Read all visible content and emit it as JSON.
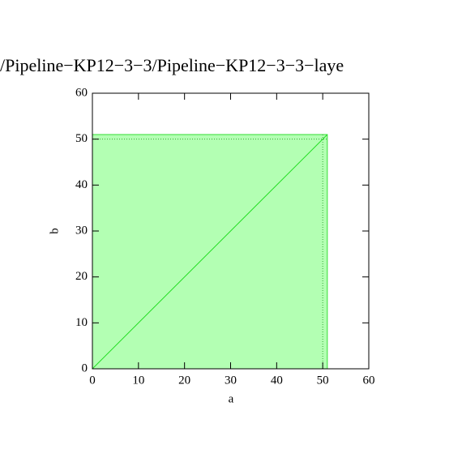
{
  "chart_data": {
    "type": "area",
    "title": "/Pipeline−KP12−3−3/Pipeline−KP12−3−3−laye",
    "xlabel": "a",
    "ylabel": "b",
    "x": [
      0,
      51
    ],
    "series": [
      {
        "type": "area",
        "color": "#b3ffb3",
        "edge_color": "#33dd33",
        "values": [
          51,
          51
        ]
      },
      {
        "type": "line",
        "color": "#22dd22",
        "values": [
          0,
          51
        ]
      }
    ],
    "reference_lines": {
      "x": 50,
      "y": 50,
      "color": "#33aa33"
    },
    "xlim": [
      0,
      60
    ],
    "ylim": [
      0,
      60
    ],
    "xticks": [
      0,
      10,
      20,
      30,
      40,
      50,
      60
    ],
    "yticks": [
      0,
      10,
      20,
      30,
      40,
      50,
      60
    ]
  }
}
